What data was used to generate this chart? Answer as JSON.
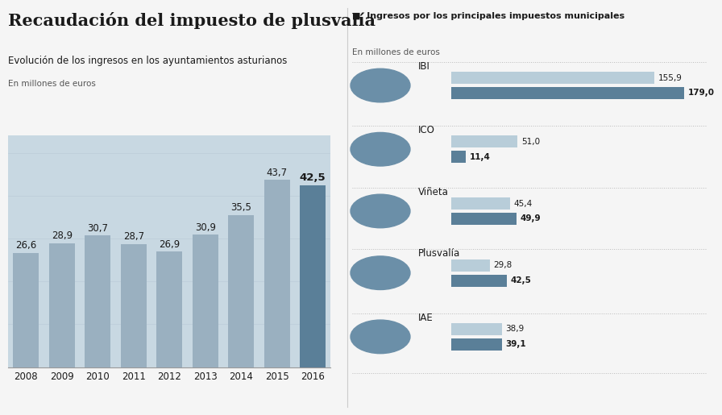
{
  "title": "Recaudación del impuesto de plusvalía",
  "subtitle": "Evolución de los ingresos en los ayuntamientos asturianos",
  "unit_label": "En millones de euros",
  "bar_years": [
    "2008",
    "2009",
    "2010",
    "2011",
    "2012",
    "2013",
    "2014",
    "2015",
    "2016"
  ],
  "bar_values": [
    26.6,
    28.9,
    30.7,
    28.7,
    26.9,
    30.9,
    35.5,
    43.7,
    42.5
  ],
  "bar_color_main": "#9ab0c0",
  "bar_color_dark": "#5a7f98",
  "right_title": "Ingresos por los principales impuestos municipales",
  "right_subtitle": "En millones de euros",
  "right_categories": [
    "IBI",
    "ICO",
    "Viñeta",
    "Plusvalía",
    "IAE"
  ],
  "right_val_light": [
    155.9,
    51.0,
    45.4,
    29.8,
    38.9
  ],
  "right_val_dark": [
    179.0,
    11.4,
    49.9,
    42.5,
    39.1
  ],
  "right_val_dark_labels": [
    "179,0",
    "11,4",
    "49,9",
    "42,5",
    "39,1"
  ],
  "right_val_light_labels": [
    "155,9",
    "51,0",
    "45,4",
    "29,8",
    "38,9"
  ],
  "right_bar_light": "#b8cdd9",
  "right_bar_dark": "#5a7f98",
  "icon_color": "#6b8fa8",
  "bg_color": "#f5f5f5",
  "text_color": "#1a1a1a",
  "divider_color": "#bbbbbb"
}
